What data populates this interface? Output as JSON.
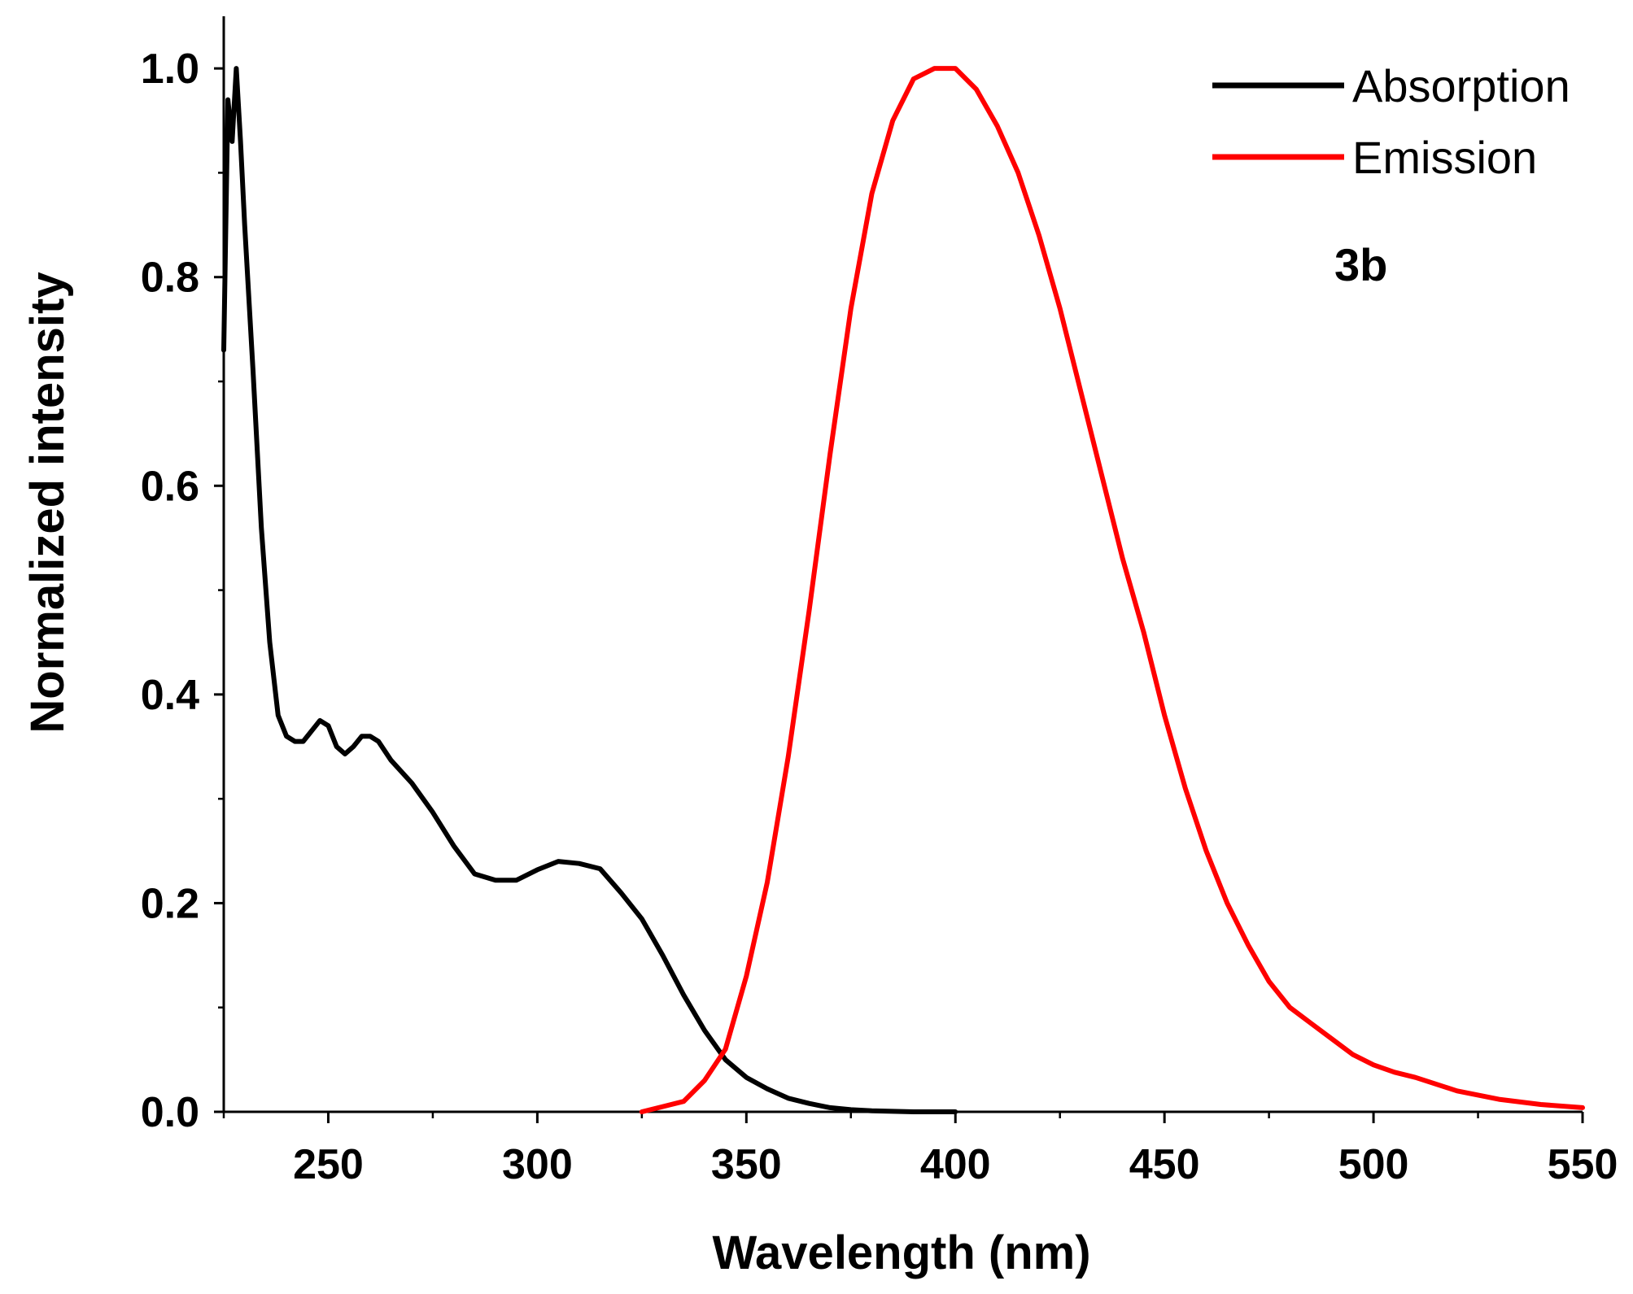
{
  "chart_data": {
    "type": "line",
    "title": "",
    "xlabel": "Wavelength (nm)",
    "ylabel": "Normalized intensity",
    "xlim": [
      225,
      550
    ],
    "ylim": [
      0,
      1.05
    ],
    "x_ticks": [
      250,
      300,
      350,
      400,
      450,
      500,
      550
    ],
    "y_ticks": [
      0.0,
      0.2,
      0.4,
      0.6,
      0.8,
      1.0
    ],
    "x_tick_labels": [
      "250",
      "300",
      "350",
      "400",
      "450",
      "500",
      "550"
    ],
    "y_tick_labels": [
      "0.0",
      "0.2",
      "0.4",
      "0.6",
      "0.8",
      "1.0"
    ],
    "grid": false,
    "legend_position": "top-right",
    "annotation": "3b",
    "series": [
      {
        "name": "Absorption",
        "color": "#000000",
        "x": [
          225,
          226,
          227,
          228,
          229,
          230,
          232,
          234,
          236,
          238,
          240,
          242,
          244,
          246,
          248,
          250,
          252,
          254,
          256,
          258,
          260,
          262,
          265,
          270,
          275,
          280,
          285,
          290,
          295,
          300,
          305,
          310,
          315,
          320,
          325,
          330,
          335,
          340,
          345,
          350,
          355,
          360,
          365,
          370,
          375,
          380,
          390,
          400
        ],
        "y": [
          0.73,
          0.97,
          0.93,
          1.0,
          0.93,
          0.85,
          0.71,
          0.56,
          0.45,
          0.38,
          0.36,
          0.355,
          0.355,
          0.365,
          0.375,
          0.37,
          0.35,
          0.343,
          0.35,
          0.36,
          0.36,
          0.355,
          0.337,
          0.315,
          0.287,
          0.255,
          0.228,
          0.222,
          0.222,
          0.232,
          0.24,
          0.238,
          0.233,
          0.21,
          0.185,
          0.15,
          0.112,
          0.078,
          0.05,
          0.033,
          0.022,
          0.013,
          0.008,
          0.004,
          0.002,
          0.001,
          0.0,
          0.0
        ]
      },
      {
        "name": "Emission",
        "color": "#ff0000",
        "x": [
          325,
          330,
          335,
          340,
          345,
          350,
          355,
          360,
          365,
          370,
          375,
          380,
          385,
          390,
          395,
          400,
          405,
          410,
          415,
          420,
          425,
          430,
          435,
          440,
          445,
          450,
          455,
          460,
          465,
          470,
          475,
          480,
          485,
          490,
          495,
          500,
          505,
          510,
          520,
          530,
          540,
          550
        ],
        "y": [
          0.0,
          0.005,
          0.01,
          0.03,
          0.06,
          0.13,
          0.22,
          0.34,
          0.48,
          0.63,
          0.77,
          0.88,
          0.95,
          0.99,
          1.0,
          1.0,
          0.98,
          0.945,
          0.9,
          0.84,
          0.77,
          0.69,
          0.61,
          0.53,
          0.46,
          0.38,
          0.31,
          0.25,
          0.2,
          0.16,
          0.125,
          0.1,
          0.085,
          0.07,
          0.055,
          0.045,
          0.038,
          0.033,
          0.02,
          0.012,
          0.007,
          0.004
        ]
      }
    ]
  }
}
